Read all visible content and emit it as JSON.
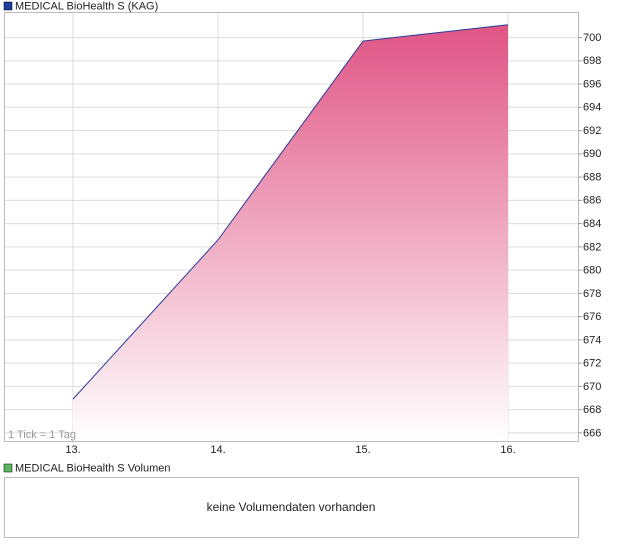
{
  "chart_data": {
    "type": "area",
    "note": "1 Tick = 1 Tag",
    "categories": [
      "13.",
      "14.",
      "15.",
      "16."
    ],
    "series": [
      {
        "name": "MEDICAL BioHealth S (KAG)",
        "color": "#2a3a9a",
        "fill": "#e05585",
        "legend_color": "#1f3f9f",
        "values": [
          668.9,
          682.6,
          699.7,
          701.1
        ]
      }
    ],
    "ylim": [
      665.3,
      702.2
    ],
    "yticks": [
      666,
      668,
      670,
      672,
      674,
      676,
      678,
      680,
      682,
      684,
      686,
      688,
      690,
      692,
      694,
      696,
      698,
      700
    ],
    "grid": true
  },
  "volume_panel": {
    "legend": "MEDICAL BioHealth S Volumen",
    "legend_color": "#5cb85c",
    "message": "keine Volumendaten vorhanden"
  }
}
